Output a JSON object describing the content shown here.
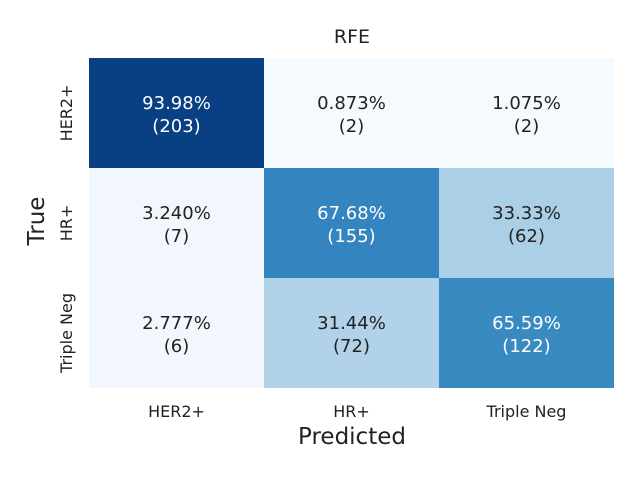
{
  "chart_data": {
    "type": "heatmap",
    "title": "RFE",
    "xlabel": "Predicted",
    "ylabel": "True",
    "x_categories": [
      "HER2+",
      "HR+",
      "Triple Neg"
    ],
    "y_categories": [
      "HER2+",
      "HR+",
      "Triple Neg"
    ],
    "cells": [
      [
        {
          "pct": "93.98%",
          "count": "(203)"
        },
        {
          "pct": "0.873%",
          "count": "(2)"
        },
        {
          "pct": "1.075%",
          "count": "(2)"
        }
      ],
      [
        {
          "pct": "3.240%",
          "count": "(7)"
        },
        {
          "pct": "67.68%",
          "count": "(155)"
        },
        {
          "pct": "33.33%",
          "count": "(62)"
        }
      ],
      [
        {
          "pct": "2.777%",
          "count": "(6)"
        },
        {
          "pct": "31.44%",
          "count": "(72)"
        },
        {
          "pct": "65.59%",
          "count": "(122)"
        }
      ]
    ],
    "values": [
      [
        93.98,
        0.873,
        1.075
      ],
      [
        3.24,
        67.68,
        33.33
      ],
      [
        2.777,
        31.44,
        65.59
      ]
    ],
    "colormap": "Blues",
    "color_range": [
      0,
      100
    ],
    "colorbar": false,
    "grid": false
  }
}
